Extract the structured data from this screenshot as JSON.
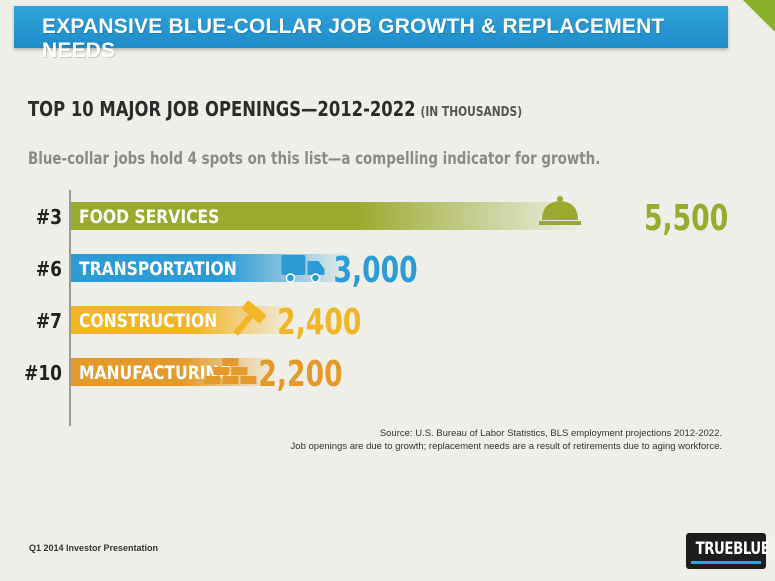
{
  "banner": {
    "title": "EXPANSIVE BLUE-COLLAR JOB GROWTH & REPLACEMENT NEEDS"
  },
  "chart_data": {
    "type": "bar",
    "orientation": "horizontal",
    "title": "TOP 10 MAJOR JOB OPENINGS—2012-2022",
    "unit": "(IN THOUSANDS)",
    "subtitle": "Blue-collar jobs hold 4 spots on this list—a compelling indicator for growth.",
    "xlim": [
      0,
      5500
    ],
    "bars": [
      {
        "rank": "#3",
        "category": "FOOD SERVICES",
        "value": 5500,
        "value_label": "5,500",
        "color": "#9aaa2e",
        "icon": "cloche-icon"
      },
      {
        "rank": "#6",
        "category": "TRANSPORTATION",
        "value": 3000,
        "value_label": "3,000",
        "color": "#2d9bd6",
        "icon": "truck-icon"
      },
      {
        "rank": "#7",
        "category": "CONSTRUCTION",
        "value": 2400,
        "value_label": "2,400",
        "color": "#f2b526",
        "icon": "hammer-icon"
      },
      {
        "rank": "#10",
        "category": "MANUFACTURING",
        "value": 2200,
        "value_label": "2,200",
        "color": "#e39a2a",
        "icon": "bricks-icon"
      }
    ]
  },
  "source": {
    "line1": "Source: U.S. Bureau of Labor Statistics, BLS employment projections 2012-2022.",
    "line2": "Job openings are due to growth; replacement needs are a result of retirements due to aging workforce."
  },
  "footer": {
    "left": "Q1 2014 Investor Presentation",
    "logo": "TRUEBLUE"
  }
}
